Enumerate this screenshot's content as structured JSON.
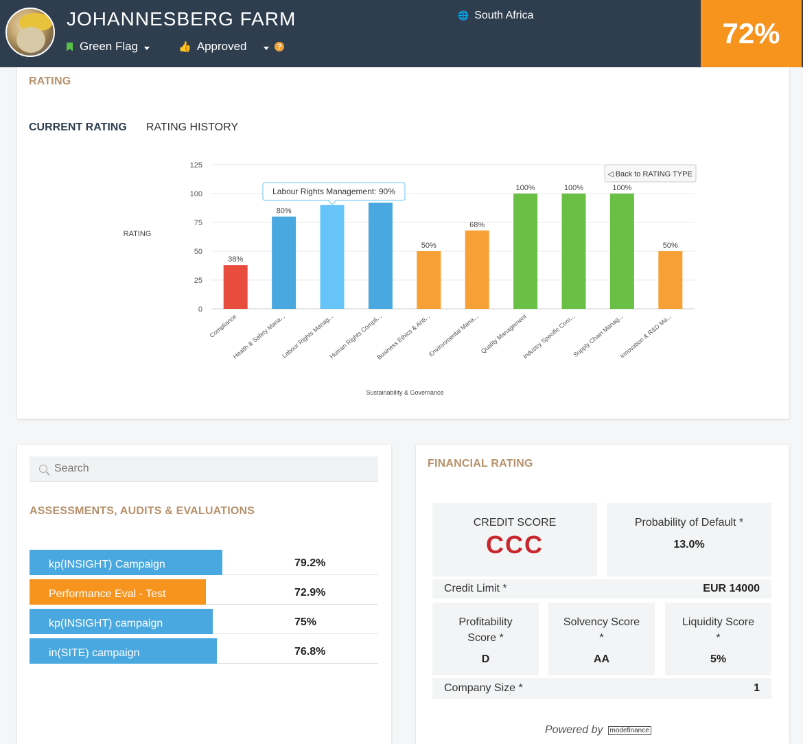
{
  "header": {
    "farm_name": "JOHANNESBERG FARM",
    "flag_label": "Green Flag",
    "status_label": "Approved",
    "help_glyph": "?",
    "country": "South Africa",
    "score": "72%",
    "flag_color": "#5bc04a",
    "score_color": "#f7941d"
  },
  "rating": {
    "title": "RATING",
    "tabs": [
      "CURRENT RATING",
      "RATING HISTORY"
    ],
    "back_button": "◁ Back to RATING TYPE",
    "tooltip": "Labour Rights Management: 90%"
  },
  "chart_data": {
    "type": "bar",
    "title": "",
    "xlabel": "Sustainability & Governance",
    "ylabel": "RATING",
    "ylim": [
      0,
      125
    ],
    "yticks": [
      0,
      25,
      50,
      75,
      100,
      125
    ],
    "grid": true,
    "categories": [
      "Compliance",
      "Health & Safety Mana...",
      "Labour Rights Manag...",
      "Human Rights Compli...",
      "Business Ethics & Anti...",
      "Environmental Mana...",
      "Quality Management",
      "Industry Specific Com...",
      "Supply Chain Manag...",
      "Innovation & R&D Ma..."
    ],
    "values": [
      38,
      80,
      90,
      92,
      50,
      68,
      100,
      100,
      100,
      50
    ],
    "labels": [
      "38%",
      "80%",
      "",
      "",
      "50%",
      "68%",
      "100%",
      "100%",
      "100%",
      "50%"
    ],
    "colors": [
      "#e74c3c",
      "#4aa8e0",
      "#66c4f9",
      "#4aa8e0",
      "#f7a035",
      "#f7a035",
      "#6abf45",
      "#6abf45",
      "#6abf45",
      "#f7a035"
    ],
    "highlighted_index": 2
  },
  "search": {
    "placeholder": "Search"
  },
  "assessments": {
    "title": "ASSESSMENTS, AUDITS & EVALUATIONS",
    "items": [
      {
        "name": "kp(INSIGHT) Campaign",
        "value": "79.2%",
        "fill": 0.553,
        "color": "#4aa8e0"
      },
      {
        "name": "Performance Eval - Test",
        "value": "72.9%",
        "fill": 0.506,
        "color": "#f7941d"
      },
      {
        "name": "kp(INSIGHT) campaign",
        "value": "75%",
        "fill": 0.526,
        "color": "#4aa8e0"
      },
      {
        "name": "in(SITE) campaign",
        "value": "76.8%",
        "fill": 0.537,
        "color": "#4aa8e0"
      }
    ]
  },
  "financial": {
    "title": "FINANCIAL RATING",
    "credit_score_label": "CREDIT SCORE",
    "credit_score": "CCC",
    "pod_label": "Probability of Default *",
    "pod_value": "13.0%",
    "credit_limit_label": "Credit Limit *",
    "credit_limit_value": "EUR 14000",
    "profitability_label_1": "Profitability",
    "profitability_label_2": "Score *",
    "profitability_value": "D",
    "solvency_label_1": "Solvency Score",
    "solvency_label_2": "*",
    "solvency_value": "AA",
    "liquidity_label_1": "Liquidity Score",
    "liquidity_label_2": "*",
    "liquidity_value": "5%",
    "company_size_label": "Company Size *",
    "company_size_value": "1",
    "powered_by": "Powered by",
    "powered_logo": "modefinance"
  }
}
